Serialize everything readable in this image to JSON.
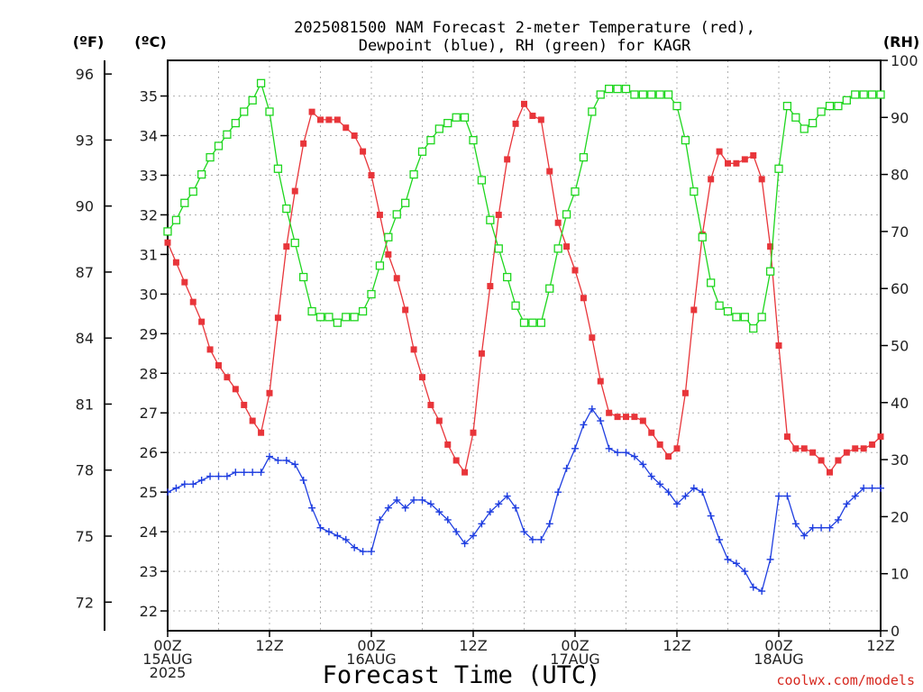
{
  "chart_data": {
    "type": "line",
    "title": "2025081500 NAM Forecast 2-meter Temperature (red), Dewpoint (blue), RH (green) for KAGR",
    "title_lines": [
      "2025081500 NAM Forecast 2-meter Temperature (red),",
      "Dewpoint (blue), RH (green) for KAGR"
    ],
    "xlabel": "Forecast Time (UTC)",
    "credit": "coolwx.com/models",
    "units": {
      "f": "(ºF)",
      "c": "(ºC)",
      "rh": "(RH)"
    },
    "x_range": [
      0,
      84
    ],
    "x_ticks": [
      {
        "x": 0,
        "lines": [
          "00Z",
          "15AUG",
          "2025"
        ]
      },
      {
        "x": 12,
        "lines": [
          "12Z"
        ]
      },
      {
        "x": 24,
        "lines": [
          "00Z",
          "16AUG"
        ]
      },
      {
        "x": 36,
        "lines": [
          "12Z"
        ]
      },
      {
        "x": 48,
        "lines": [
          "00Z",
          "17AUG"
        ]
      },
      {
        "x": 60,
        "lines": [
          "12Z"
        ]
      },
      {
        "x": 72,
        "lines": [
          "00Z",
          "18AUG"
        ]
      },
      {
        "x": 84,
        "lines": [
          "12Z"
        ]
      }
    ],
    "y_celsius": {
      "range": [
        21.5,
        35.9
      ],
      "ticks": [
        22,
        23,
        24,
        25,
        26,
        27,
        28,
        29,
        30,
        31,
        32,
        33,
        34,
        35
      ]
    },
    "y_fahrenheit": {
      "ticks": [
        72,
        75,
        78,
        81,
        84,
        87,
        90,
        93,
        96
      ]
    },
    "y_rh": {
      "range": [
        0,
        100
      ],
      "ticks": [
        0,
        10,
        20,
        30,
        40,
        50,
        60,
        70,
        80,
        90,
        100
      ]
    },
    "grid": true,
    "series": [
      {
        "name": "Temperature (red)",
        "axis": "c",
        "color": "#e8353a",
        "marker": "filled-square",
        "points": [
          [
            0,
            31.3
          ],
          [
            1,
            30.8
          ],
          [
            2,
            30.3
          ],
          [
            3,
            29.8
          ],
          [
            4,
            29.3
          ],
          [
            5,
            28.6
          ],
          [
            6,
            28.2
          ],
          [
            7,
            27.9
          ],
          [
            8,
            27.6
          ],
          [
            9,
            27.2
          ],
          [
            10,
            26.8
          ],
          [
            11,
            26.5
          ],
          [
            12,
            27.5
          ],
          [
            13,
            29.4
          ],
          [
            14,
            31.2
          ],
          [
            15,
            32.6
          ],
          [
            16,
            33.8
          ],
          [
            17,
            34.6
          ],
          [
            18,
            34.4
          ],
          [
            19,
            34.4
          ],
          [
            20,
            34.4
          ],
          [
            21,
            34.2
          ],
          [
            22,
            34.0
          ],
          [
            23,
            33.6
          ],
          [
            24,
            33.0
          ],
          [
            25,
            32.0
          ],
          [
            26,
            31.0
          ],
          [
            27,
            30.4
          ],
          [
            28,
            29.6
          ],
          [
            29,
            28.6
          ],
          [
            30,
            27.9
          ],
          [
            31,
            27.2
          ],
          [
            32,
            26.8
          ],
          [
            33,
            26.2
          ],
          [
            34,
            25.8
          ],
          [
            35,
            25.5
          ],
          [
            36,
            26.5
          ],
          [
            37,
            28.5
          ],
          [
            38,
            30.2
          ],
          [
            39,
            32.0
          ],
          [
            40,
            33.4
          ],
          [
            41,
            34.3
          ],
          [
            42,
            34.8
          ],
          [
            43,
            34.5
          ],
          [
            44,
            34.4
          ],
          [
            45,
            33.1
          ],
          [
            46,
            31.8
          ],
          [
            47,
            31.2
          ],
          [
            48,
            30.6
          ],
          [
            49,
            29.9
          ],
          [
            50,
            28.9
          ],
          [
            51,
            27.8
          ],
          [
            52,
            27.0
          ],
          [
            53,
            26.9
          ],
          [
            54,
            26.9
          ],
          [
            55,
            26.9
          ],
          [
            56,
            26.8
          ],
          [
            57,
            26.5
          ],
          [
            58,
            26.2
          ],
          [
            59,
            25.9
          ],
          [
            60,
            26.1
          ],
          [
            61,
            27.5
          ],
          [
            62,
            29.6
          ],
          [
            63,
            31.5
          ],
          [
            64,
            32.9
          ],
          [
            65,
            33.6
          ],
          [
            66,
            33.3
          ],
          [
            67,
            33.3
          ],
          [
            68,
            33.4
          ],
          [
            69,
            33.5
          ],
          [
            70,
            32.9
          ],
          [
            71,
            31.2
          ],
          [
            72,
            28.7
          ],
          [
            73,
            26.4
          ],
          [
            74,
            26.1
          ],
          [
            75,
            26.1
          ],
          [
            76,
            26.0
          ],
          [
            77,
            25.8
          ],
          [
            78,
            25.5
          ],
          [
            79,
            25.8
          ],
          [
            80,
            26.0
          ],
          [
            81,
            26.1
          ],
          [
            82,
            26.1
          ],
          [
            83,
            26.2
          ],
          [
            84,
            26.4
          ]
        ]
      },
      {
        "name": "Dewpoint (blue)",
        "axis": "c",
        "color": "#1f3ee0",
        "marker": "plus",
        "points": [
          [
            0,
            25.0
          ],
          [
            1,
            25.1
          ],
          [
            2,
            25.2
          ],
          [
            3,
            25.2
          ],
          [
            4,
            25.3
          ],
          [
            5,
            25.4
          ],
          [
            6,
            25.4
          ],
          [
            7,
            25.4
          ],
          [
            8,
            25.5
          ],
          [
            9,
            25.5
          ],
          [
            10,
            25.5
          ],
          [
            11,
            25.5
          ],
          [
            12,
            25.9
          ],
          [
            13,
            25.8
          ],
          [
            14,
            25.8
          ],
          [
            15,
            25.7
          ],
          [
            16,
            25.3
          ],
          [
            17,
            24.6
          ],
          [
            18,
            24.1
          ],
          [
            19,
            24.0
          ],
          [
            20,
            23.9
          ],
          [
            21,
            23.8
          ],
          [
            22,
            23.6
          ],
          [
            23,
            23.5
          ],
          [
            24,
            23.5
          ],
          [
            25,
            24.3
          ],
          [
            26,
            24.6
          ],
          [
            27,
            24.8
          ],
          [
            28,
            24.6
          ],
          [
            29,
            24.8
          ],
          [
            30,
            24.8
          ],
          [
            31,
            24.7
          ],
          [
            32,
            24.5
          ],
          [
            33,
            24.3
          ],
          [
            34,
            24.0
          ],
          [
            35,
            23.7
          ],
          [
            36,
            23.9
          ],
          [
            37,
            24.2
          ],
          [
            38,
            24.5
          ],
          [
            39,
            24.7
          ],
          [
            40,
            24.9
          ],
          [
            41,
            24.6
          ],
          [
            42,
            24.0
          ],
          [
            43,
            23.8
          ],
          [
            44,
            23.8
          ],
          [
            45,
            24.2
          ],
          [
            46,
            25.0
          ],
          [
            47,
            25.6
          ],
          [
            48,
            26.1
          ],
          [
            49,
            26.7
          ],
          [
            50,
            27.1
          ],
          [
            51,
            26.8
          ],
          [
            52,
            26.1
          ],
          [
            53,
            26.0
          ],
          [
            54,
            26.0
          ],
          [
            55,
            25.9
          ],
          [
            56,
            25.7
          ],
          [
            57,
            25.4
          ],
          [
            58,
            25.2
          ],
          [
            59,
            25.0
          ],
          [
            60,
            24.7
          ],
          [
            61,
            24.9
          ],
          [
            62,
            25.1
          ],
          [
            63,
            25.0
          ],
          [
            64,
            24.4
          ],
          [
            65,
            23.8
          ],
          [
            66,
            23.3
          ],
          [
            67,
            23.2
          ],
          [
            68,
            23.0
          ],
          [
            69,
            22.6
          ],
          [
            70,
            22.5
          ],
          [
            71,
            23.3
          ],
          [
            72,
            24.9
          ],
          [
            73,
            24.9
          ],
          [
            74,
            24.2
          ],
          [
            75,
            23.9
          ],
          [
            76,
            24.1
          ],
          [
            77,
            24.1
          ],
          [
            78,
            24.1
          ],
          [
            79,
            24.3
          ],
          [
            80,
            24.7
          ],
          [
            81,
            24.9
          ],
          [
            82,
            25.1
          ],
          [
            83,
            25.1
          ],
          [
            84,
            25.1
          ]
        ]
      },
      {
        "name": "RH (green)",
        "axis": "rh",
        "color": "#1ed61e",
        "marker": "open-square",
        "points": [
          [
            0,
            70
          ],
          [
            1,
            72
          ],
          [
            2,
            75
          ],
          [
            3,
            77
          ],
          [
            4,
            80
          ],
          [
            5,
            83
          ],
          [
            6,
            85
          ],
          [
            7,
            87
          ],
          [
            8,
            89
          ],
          [
            9,
            91
          ],
          [
            10,
            93
          ],
          [
            11,
            96
          ],
          [
            12,
            91
          ],
          [
            13,
            81
          ],
          [
            14,
            74
          ],
          [
            15,
            68
          ],
          [
            16,
            62
          ],
          [
            17,
            56
          ],
          [
            18,
            55
          ],
          [
            19,
            55
          ],
          [
            20,
            54
          ],
          [
            21,
            55
          ],
          [
            22,
            55
          ],
          [
            23,
            56
          ],
          [
            24,
            59
          ],
          [
            25,
            64
          ],
          [
            26,
            69
          ],
          [
            27,
            73
          ],
          [
            28,
            75
          ],
          [
            29,
            80
          ],
          [
            30,
            84
          ],
          [
            31,
            86
          ],
          [
            32,
            88
          ],
          [
            33,
            89
          ],
          [
            34,
            90
          ],
          [
            35,
            90
          ],
          [
            36,
            86
          ],
          [
            37,
            79
          ],
          [
            38,
            72
          ],
          [
            39,
            67
          ],
          [
            40,
            62
          ],
          [
            41,
            57
          ],
          [
            42,
            54
          ],
          [
            43,
            54
          ],
          [
            44,
            54
          ],
          [
            45,
            60
          ],
          [
            46,
            67
          ],
          [
            47,
            73
          ],
          [
            48,
            77
          ],
          [
            49,
            83
          ],
          [
            50,
            91
          ],
          [
            51,
            94
          ],
          [
            52,
            95
          ],
          [
            53,
            95
          ],
          [
            54,
            95
          ],
          [
            55,
            94
          ],
          [
            56,
            94
          ],
          [
            57,
            94
          ],
          [
            58,
            94
          ],
          [
            59,
            94
          ],
          [
            60,
            92
          ],
          [
            61,
            86
          ],
          [
            62,
            77
          ],
          [
            63,
            69
          ],
          [
            64,
            61
          ],
          [
            65,
            57
          ],
          [
            66,
            56
          ],
          [
            67,
            55
          ],
          [
            68,
            55
          ],
          [
            69,
            53
          ],
          [
            70,
            55
          ],
          [
            71,
            63
          ],
          [
            72,
            81
          ],
          [
            73,
            92
          ],
          [
            74,
            90
          ],
          [
            75,
            88
          ],
          [
            76,
            89
          ],
          [
            77,
            91
          ],
          [
            78,
            92
          ],
          [
            79,
            92
          ],
          [
            80,
            93
          ],
          [
            81,
            94
          ],
          [
            82,
            94
          ],
          [
            83,
            94
          ],
          [
            84,
            94
          ]
        ]
      }
    ]
  }
}
